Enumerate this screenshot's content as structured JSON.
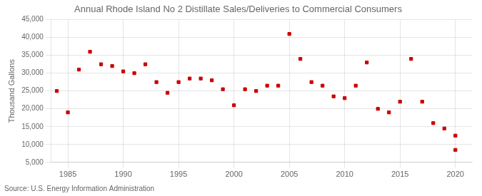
{
  "chart_data": {
    "type": "scatter",
    "title": "Annual Rhode Island No 2 Distillate Sales/Deliveries to Commercial Consumers",
    "ylabel": "Thousand Gallons",
    "source": "Source: U.S. Energy Information Administration",
    "x": [
      1984,
      1985,
      1986,
      1987,
      1988,
      1989,
      1990,
      1991,
      1992,
      1993,
      1994,
      1995,
      1996,
      1997,
      1998,
      1999,
      2000,
      2001,
      2002,
      2003,
      2004,
      2005,
      2006,
      2007,
      2008,
      2009,
      2010,
      2011,
      2012,
      2013,
      2014,
      2015,
      2016,
      2017,
      2018,
      2019,
      2020,
      2020
    ],
    "values": [
      25000,
      19000,
      31000,
      36000,
      32500,
      32000,
      30500,
      30000,
      32500,
      27500,
      24500,
      27500,
      28500,
      28500,
      28000,
      25500,
      21000,
      25500,
      25000,
      26500,
      26500,
      41000,
      34000,
      27500,
      26500,
      23500,
      23000,
      26500,
      33000,
      20000,
      19000,
      22000,
      34000,
      22000,
      16000,
      14500,
      12500,
      8500
    ],
    "color": "#cc0000",
    "marker": "square",
    "xlim": [
      1983.5,
      2021.5
    ],
    "xticks": [
      1985,
      1990,
      1995,
      2000,
      2005,
      2010,
      2015,
      2020
    ],
    "ylim": [
      5000,
      45000
    ],
    "yticks": [
      {
        "value": 5000,
        "label": "5,000"
      },
      {
        "value": 10000,
        "label": "10,000"
      },
      {
        "value": 15000,
        "label": "15,000"
      },
      {
        "value": 20000,
        "label": "20,000"
      },
      {
        "value": 25000,
        "label": "25,000"
      },
      {
        "value": 30000,
        "label": "30,000"
      },
      {
        "value": 35000,
        "label": "35,000"
      },
      {
        "value": 40000,
        "label": "40,000"
      },
      {
        "value": 45000,
        "label": "45,000"
      }
    ],
    "grid": true
  }
}
